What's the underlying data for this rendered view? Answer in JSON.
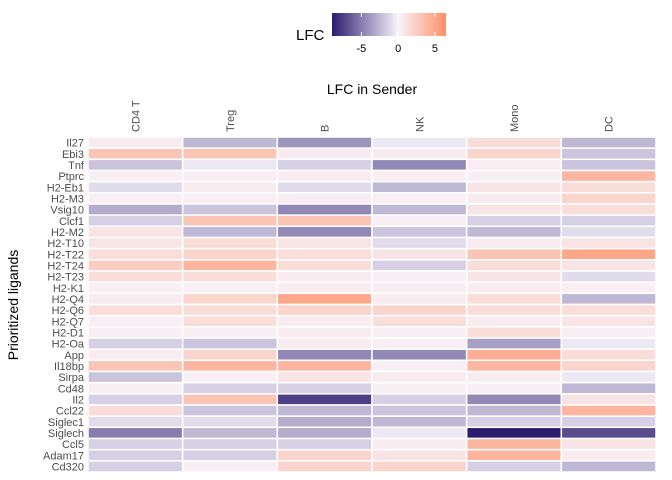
{
  "chart_data": {
    "type": "heatmap",
    "title": "LFC in Sender",
    "ylabel": "Prioritized ligands",
    "legend": {
      "title": "LFC",
      "placement": "top",
      "ticks": [
        -5,
        0,
        5
      ],
      "range": [
        -9,
        6.5
      ],
      "colors": {
        "low": "#2b1c6e",
        "mid": "#f7f4fb",
        "high": "#ff8f66"
      }
    },
    "columns": [
      "CD4 T",
      "Treg",
      "B",
      "NK",
      "Mono",
      "DC"
    ],
    "rows": [
      "Il27",
      "Ebi3",
      "Tnf",
      "Ptprc",
      "H2-Eb1",
      "H2-M3",
      "Vsig10",
      "Clcf1",
      "H2-M2",
      "H2-T10",
      "H2-T22",
      "H2-T24",
      "H2-T23",
      "H2-K1",
      "H2-Q4",
      "H2-Q6",
      "H2-Q7",
      "H2-D1",
      "H2-Oa",
      "App",
      "Il18bp",
      "Sirpa",
      "Cd48",
      "Il2",
      "Ccl22",
      "Siglec1",
      "Siglech",
      "Ccl5",
      "Adam17",
      "Cd320"
    ],
    "values": [
      [
        0.5,
        -2.5,
        -4,
        -0.5,
        1.5,
        -2.5
      ],
      [
        3,
        3,
        0.5,
        0.5,
        2,
        -2
      ],
      [
        -2,
        -0.5,
        -1.5,
        -4.5,
        0.5,
        -2
      ],
      [
        0.3,
        0.3,
        0.5,
        0.3,
        0.3,
        4
      ],
      [
        -1,
        0.5,
        -1,
        -2.5,
        1,
        1.5
      ],
      [
        0.3,
        0.3,
        0.5,
        0.3,
        0.5,
        2
      ],
      [
        -3,
        -2,
        -4.5,
        -2.5,
        1,
        1.5
      ],
      [
        -1.5,
        3,
        3,
        0.3,
        -1.5,
        -1.5
      ],
      [
        1,
        -2.5,
        -4.5,
        -2,
        -2.5,
        -1
      ],
      [
        1,
        1.5,
        1,
        -1,
        0.5,
        1
      ],
      [
        1.5,
        2,
        1.5,
        1,
        3,
        5
      ],
      [
        2.5,
        4,
        1.5,
        -1.5,
        1.5,
        1
      ],
      [
        1.5,
        1.5,
        0.5,
        0.3,
        1,
        -1
      ],
      [
        0.3,
        0.3,
        0.5,
        0.3,
        0.5,
        0.3
      ],
      [
        0.5,
        2,
        5,
        0.5,
        1.5,
        -2.5
      ],
      [
        1.5,
        1.5,
        2,
        2,
        1.5,
        1.5
      ],
      [
        0.3,
        1.5,
        0.5,
        1.5,
        0.5,
        1
      ],
      [
        0.3,
        0.3,
        0.5,
        0.3,
        1.5,
        0.3
      ],
      [
        -1.5,
        -2,
        0.5,
        0.3,
        -3.5,
        -0.5
      ],
      [
        0.5,
        2,
        -4.5,
        -4.5,
        4.5,
        1.5
      ],
      [
        3,
        4,
        4,
        0.3,
        4,
        2
      ],
      [
        -2,
        0.3,
        1,
        0.5,
        0.5,
        -0.5
      ],
      [
        0.3,
        -1.5,
        -1.5,
        0.3,
        0.3,
        -2.5
      ],
      [
        -1.5,
        3,
        -7.5,
        -1.5,
        -4.5,
        1
      ],
      [
        1.5,
        -2,
        -2.5,
        -2,
        -2.5,
        4
      ],
      [
        -1,
        -1,
        -3,
        -2.5,
        -1.5,
        -1.5
      ],
      [
        -5,
        -2.5,
        -3,
        -0.5,
        -9,
        -7
      ],
      [
        -1.5,
        -1.5,
        -1.5,
        0.5,
        4,
        1
      ],
      [
        -1.5,
        -1.5,
        2,
        1,
        4,
        0.5
      ],
      [
        -1.5,
        0.3,
        2,
        2,
        -1.5,
        -2.5
      ]
    ]
  }
}
